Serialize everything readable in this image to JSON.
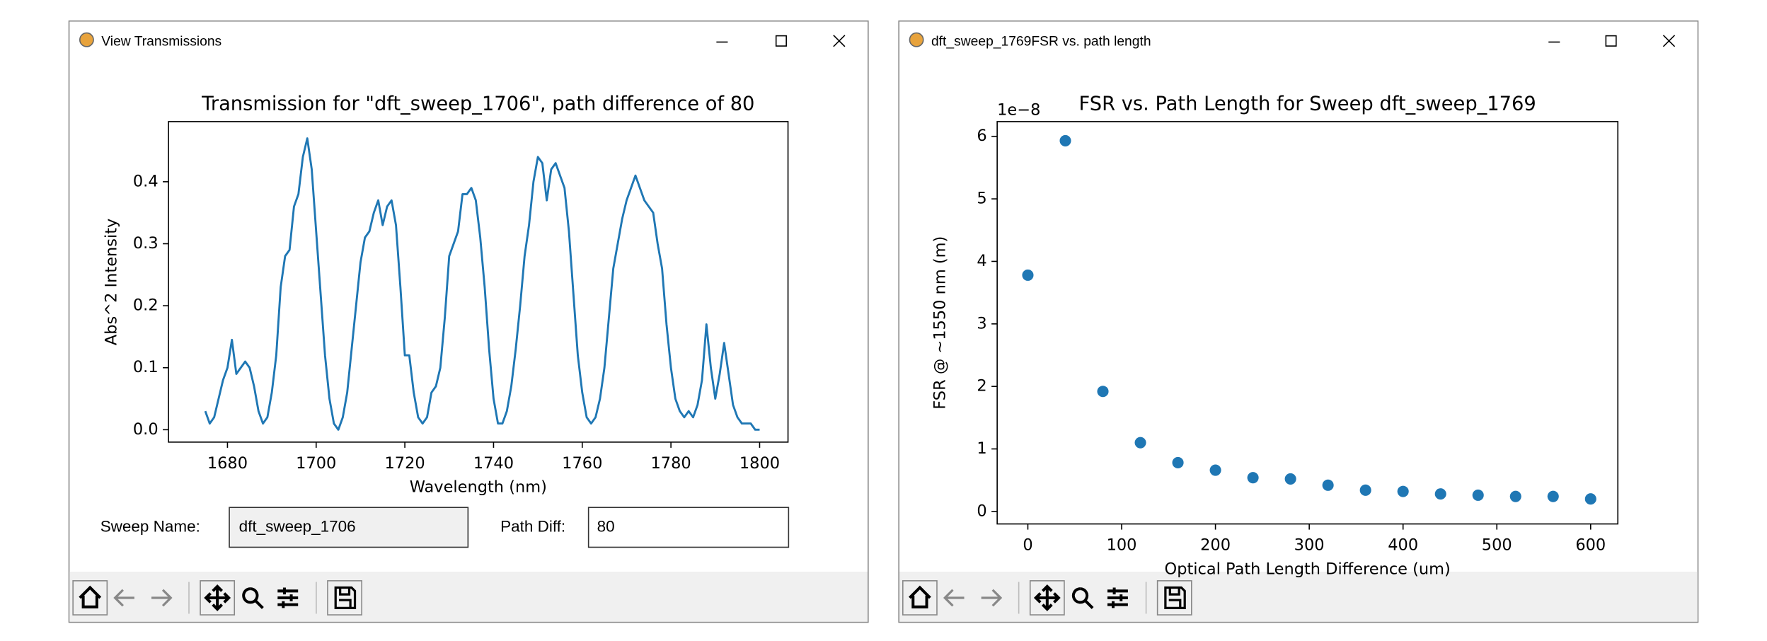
{
  "windows": [
    {
      "title": "View Transmissions",
      "form": {
        "sweep_name_label": "Sweep Name:",
        "sweep_name": "dft_sweep_1706",
        "path_diff_label": "Path Diff:",
        "path_diff": "80"
      }
    },
    {
      "title": "dft_sweep_1769FSR vs. path length"
    }
  ],
  "chart_data": [
    {
      "type": "line",
      "title": "Transmission for \"dft_sweep_1706\", path difference of 80",
      "x_label": "Wavelength (nm)",
      "y_label": "Abs^2 Intensity",
      "color": "#1f77b4",
      "x": [
        1675,
        1676,
        1677,
        1678,
        1679,
        1680,
        1681,
        1682,
        1683,
        1684,
        1685,
        1686,
        1687,
        1688,
        1689,
        1690,
        1691,
        1692,
        1693,
        1694,
        1695,
        1696,
        1697,
        1698,
        1699,
        1700,
        1701,
        1702,
        1703,
        1704,
        1705,
        1706,
        1707,
        1708,
        1709,
        1710,
        1711,
        1712,
        1713,
        1714,
        1715,
        1716,
        1717,
        1718,
        1719,
        1720,
        1721,
        1722,
        1723,
        1724,
        1725,
        1726,
        1727,
        1728,
        1729,
        1730,
        1731,
        1732,
        1733,
        1734,
        1735,
        1736,
        1737,
        1738,
        1739,
        1740,
        1741,
        1742,
        1743,
        1744,
        1745,
        1746,
        1747,
        1748,
        1749,
        1750,
        1751,
        1752,
        1753,
        1754,
        1755,
        1756,
        1757,
        1758,
        1759,
        1760,
        1761,
        1762,
        1763,
        1764,
        1765,
        1766,
        1767,
        1768,
        1769,
        1770,
        1771,
        1772,
        1773,
        1774,
        1775,
        1776,
        1777,
        1778,
        1779,
        1780,
        1781,
        1782,
        1783,
        1784,
        1785,
        1786,
        1787,
        1788,
        1789,
        1790,
        1791,
        1792,
        1793,
        1794,
        1795,
        1796,
        1797,
        1798,
        1799,
        1800
      ],
      "values": [
        0.03,
        0.01,
        0.02,
        0.05,
        0.08,
        0.1,
        0.145,
        0.09,
        0.1,
        0.11,
        0.1,
        0.07,
        0.03,
        0.01,
        0.02,
        0.06,
        0.12,
        0.23,
        0.28,
        0.29,
        0.36,
        0.38,
        0.44,
        0.47,
        0.42,
        0.32,
        0.22,
        0.12,
        0.05,
        0.01,
        0.0,
        0.02,
        0.06,
        0.13,
        0.2,
        0.27,
        0.31,
        0.32,
        0.35,
        0.37,
        0.33,
        0.36,
        0.37,
        0.33,
        0.23,
        0.12,
        0.12,
        0.06,
        0.02,
        0.01,
        0.02,
        0.06,
        0.07,
        0.1,
        0.18,
        0.28,
        0.3,
        0.32,
        0.38,
        0.38,
        0.39,
        0.37,
        0.31,
        0.23,
        0.13,
        0.05,
        0.01,
        0.01,
        0.03,
        0.07,
        0.13,
        0.2,
        0.28,
        0.33,
        0.4,
        0.44,
        0.43,
        0.37,
        0.42,
        0.43,
        0.41,
        0.39,
        0.32,
        0.22,
        0.12,
        0.06,
        0.02,
        0.01,
        0.02,
        0.05,
        0.1,
        0.18,
        0.26,
        0.3,
        0.34,
        0.37,
        0.39,
        0.41,
        0.39,
        0.37,
        0.36,
        0.35,
        0.3,
        0.26,
        0.17,
        0.1,
        0.05,
        0.03,
        0.02,
        0.03,
        0.02,
        0.04,
        0.08,
        0.17,
        0.1,
        0.05,
        0.09,
        0.14,
        0.09,
        0.04,
        0.02,
        0.01,
        0.01,
        0.01,
        0.0,
        0.0
      ],
      "xlim": [
        1666.7,
        1806.4
      ],
      "ylim": [
        -0.02,
        0.497
      ],
      "xticks": [
        1680,
        1700,
        1720,
        1740,
        1760,
        1780,
        1800
      ],
      "yticks": [
        {
          "value": 0,
          "label": "0.0"
        },
        0.1,
        0.2,
        0.3,
        0.4
      ]
    },
    {
      "type": "scatter",
      "title": "FSR vs. Path Length for Sweep dft_sweep_1769",
      "x_label": "Optical Path Length Difference (um)",
      "y_label": "FSR @ ~1550 nm (m)",
      "y_offset_label": "1e−8",
      "color": "#1f77b4",
      "x": [
        0,
        40,
        80,
        120,
        160,
        200,
        240,
        280,
        320,
        360,
        400,
        440,
        480,
        520,
        560,
        600
      ],
      "values": [
        3.78,
        5.93,
        1.92,
        1.1,
        0.78,
        0.66,
        0.54,
        0.52,
        0.42,
        0.34,
        0.32,
        0.28,
        0.26,
        0.24,
        0.24,
        0.2
      ],
      "xlim": [
        -32.7,
        629
      ],
      "ylim": [
        -0.2,
        6.236
      ],
      "xticks": [
        0,
        100,
        200,
        300,
        400,
        500,
        600
      ],
      "yticks": [
        0,
        1,
        2,
        3,
        4,
        5,
        6
      ]
    }
  ]
}
